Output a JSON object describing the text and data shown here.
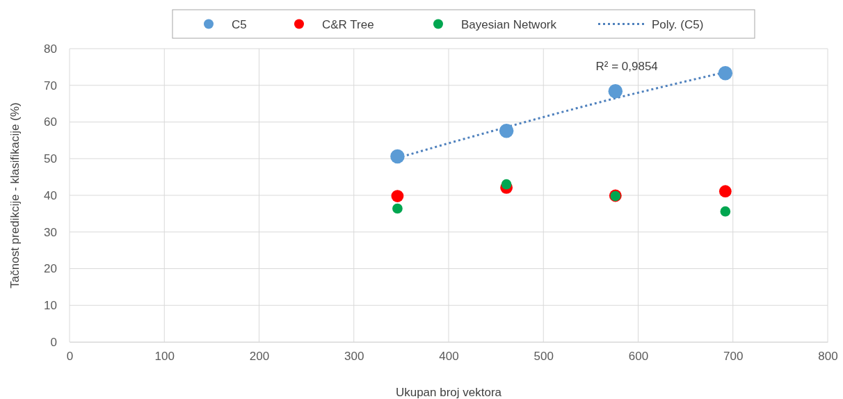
{
  "chart_data": {
    "type": "scatter",
    "xlabel": "Ukupan broj vektora",
    "ylabel": "Tačnost predikcije - klasifikacije (%)",
    "x": [
      346,
      461,
      576,
      692
    ],
    "series": [
      {
        "name": "C5",
        "color": "#5b9bd5",
        "values": [
          50.6,
          57.6,
          68.4,
          73.3
        ]
      },
      {
        "name": "C&R Tree",
        "color": "#ff0000",
        "values": [
          39.8,
          42.1,
          39.9,
          41.1
        ]
      },
      {
        "name": "Bayesian Network",
        "color": "#00a650",
        "values": [
          36.4,
          43.0,
          39.8,
          35.6
        ]
      },
      {
        "name": "Poly. (C5)",
        "type": "line",
        "line_style": "dotted",
        "marker": "none",
        "color": "#4f81bd",
        "x": [
          346,
          404,
          461,
          518,
          576,
          634,
          692
        ],
        "values": [
          50.2,
          54.5,
          58.6,
          62.6,
          66.5,
          70.1,
          73.6
        ]
      }
    ],
    "marker": "circle",
    "annotations": [
      "R² = 0,9854"
    ],
    "xlim": [
      0,
      800
    ],
    "xticks": [
      0,
      100,
      200,
      300,
      400,
      500,
      600,
      700,
      800
    ],
    "ylim": [
      0,
      80
    ],
    "yticks": [
      0,
      10,
      20,
      30,
      40,
      50,
      60,
      70,
      80
    ],
    "grid": true,
    "legend": "top"
  }
}
